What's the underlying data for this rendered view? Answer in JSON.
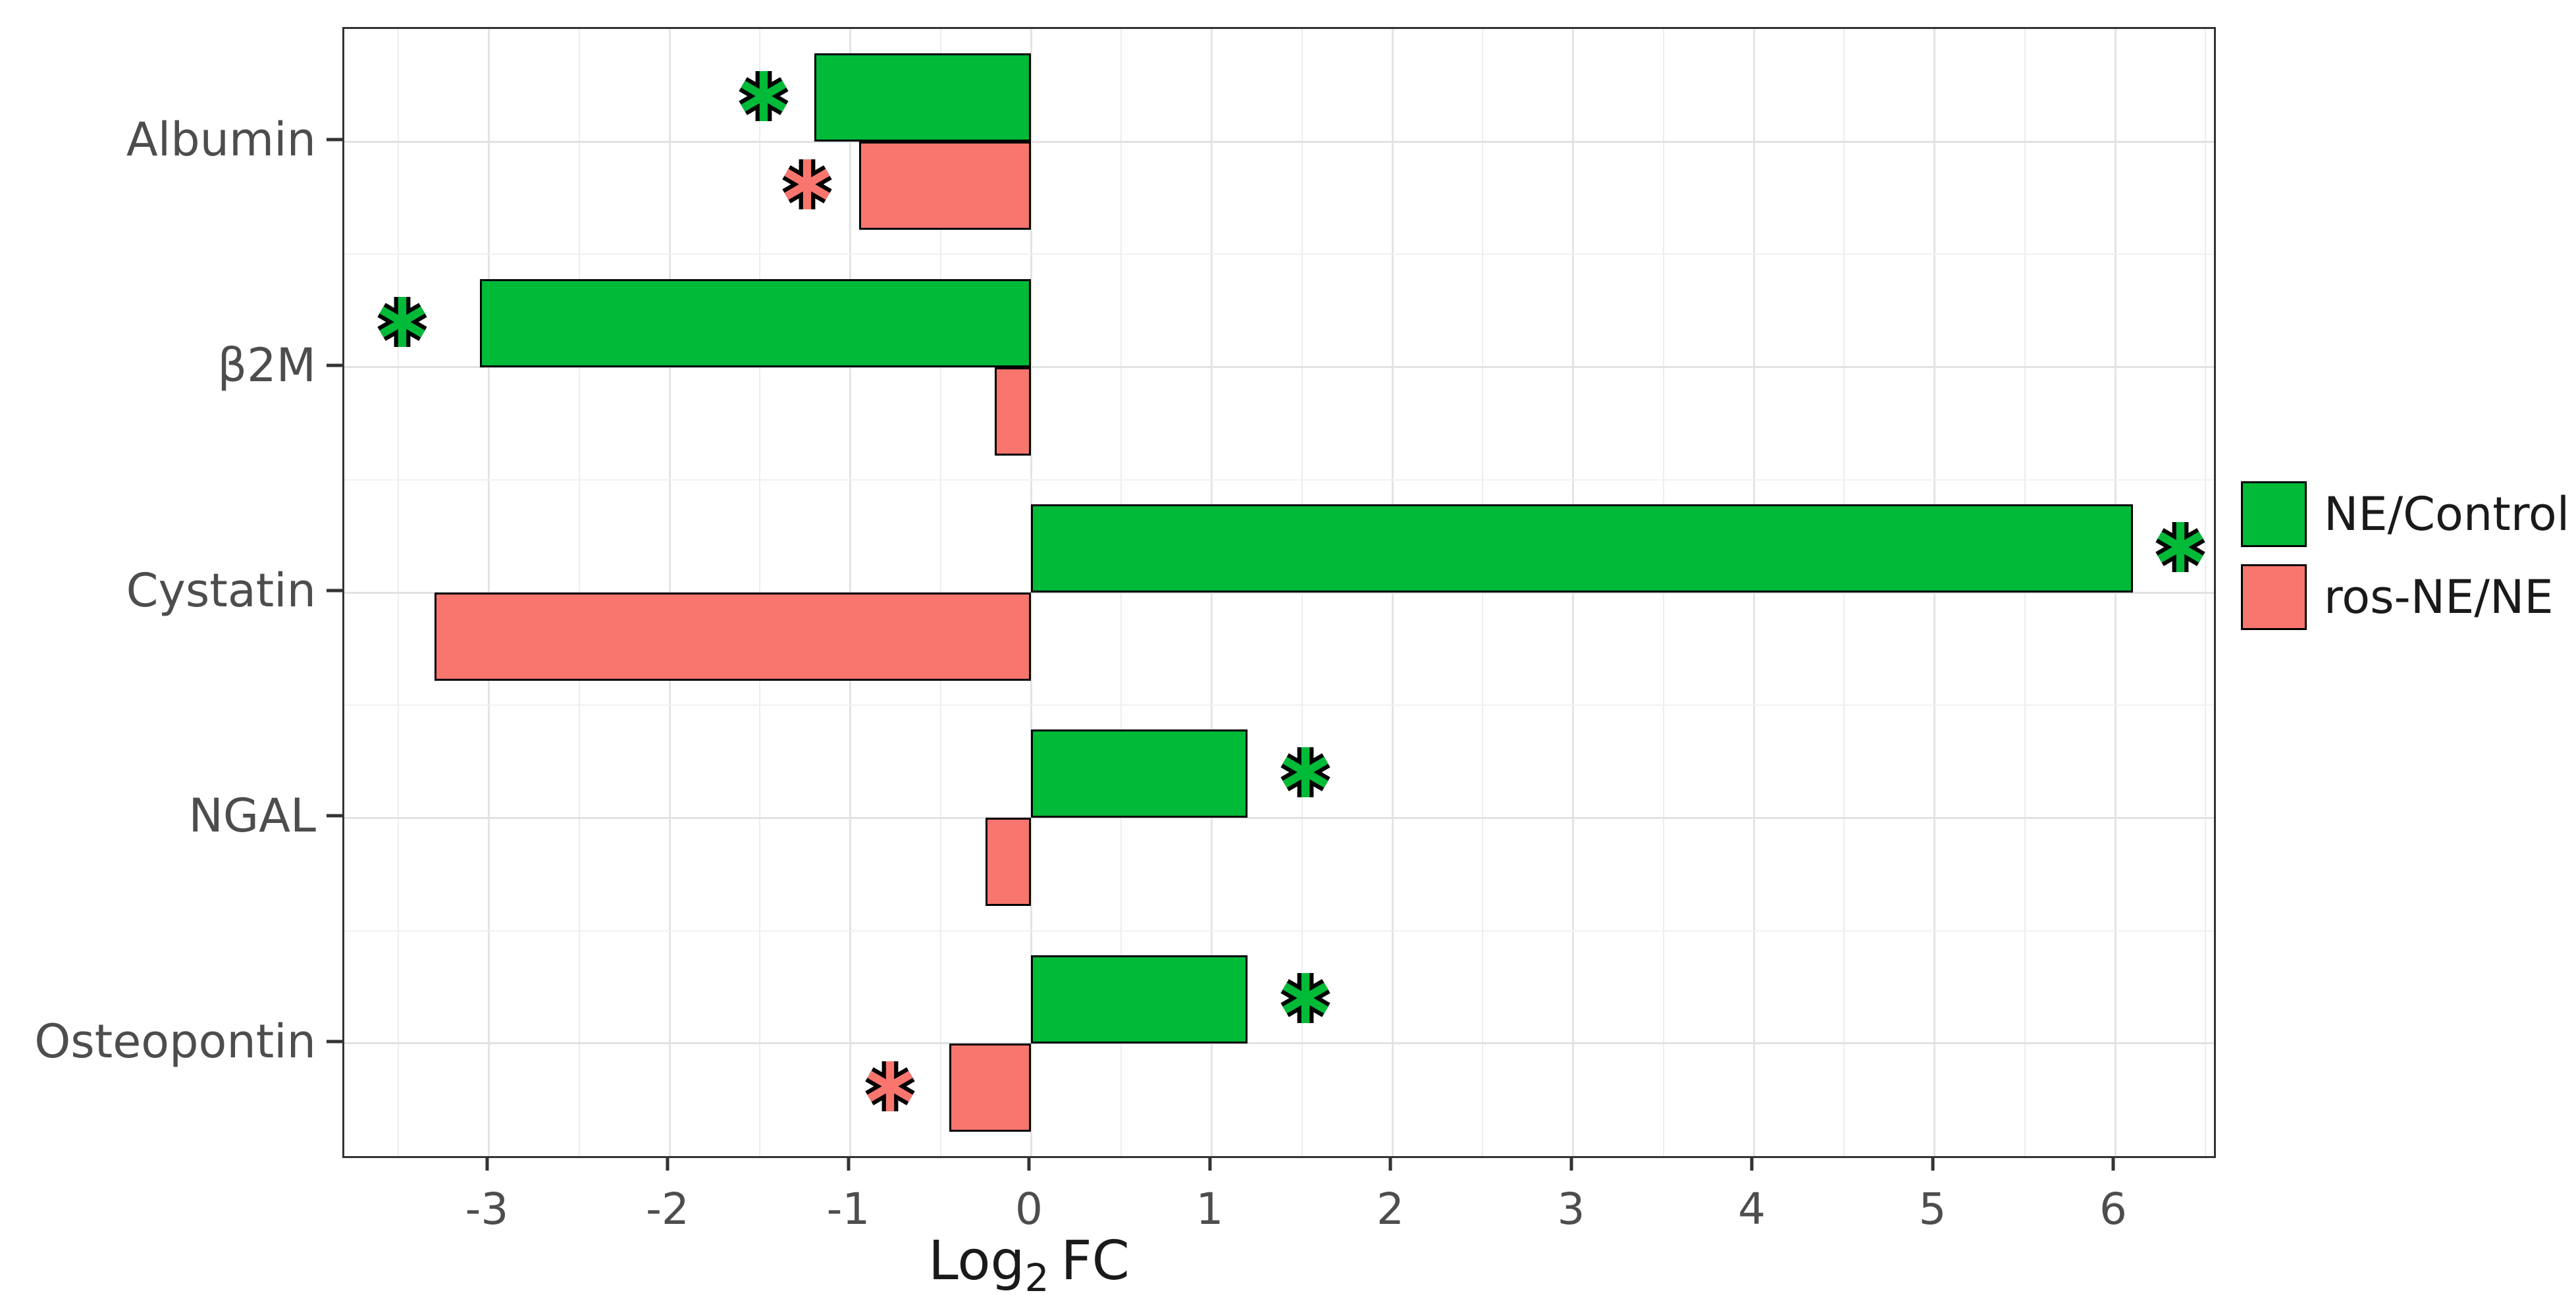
{
  "figure": {
    "description": "Horizontal grouped bar chart of urinary biomarkers, Log2 fold change",
    "background_color": "#FFFFFF",
    "panel_border_color": "#333333",
    "gridline_color": "#E4E4E4",
    "axis_text_color": "#4D4D4D"
  },
  "chart_data": {
    "type": "bar",
    "orientation": "horizontal",
    "title": "",
    "xlabel": "Log2 FC",
    "xlabel_parts": {
      "main": "Log",
      "sub": "2",
      "rest": "FC"
    },
    "ylabel": "",
    "categories": [
      "Albumin",
      "β2M",
      "Cystatin",
      "NGAL",
      "Osteopontin"
    ],
    "series": [
      {
        "name": "NE/Control",
        "color": "#00BA38",
        "values": [
          -1.2,
          -3.05,
          6.1,
          1.2,
          1.2
        ]
      },
      {
        "name": "ros-NE/NE",
        "color": "#F8766D",
        "values": [
          -0.95,
          -0.2,
          -3.3,
          -0.25,
          -0.45
        ]
      }
    ],
    "x_ticks": [
      "-3",
      "-2",
      "-1",
      "0",
      "1",
      "2",
      "3",
      "4",
      "5",
      "6"
    ],
    "x_tick_values": [
      -3,
      -2,
      -1,
      0,
      1,
      2,
      3,
      4,
      5,
      6
    ],
    "xlim": [
      -3.8,
      6.55
    ],
    "grid": "vertical major every 1 and minor every 0.5, horizontal at category centers",
    "legend_position": "right of panel, middle",
    "significance_marker": "*",
    "significance": [
      {
        "category": "Albumin",
        "series": "NE/Control",
        "x": -1.48
      },
      {
        "category": "Albumin",
        "series": "ros-NE/NE",
        "x": -1.24
      },
      {
        "category": "β2M",
        "series": "NE/Control",
        "x": -3.48
      },
      {
        "category": "Cystatin",
        "series": "NE/Control",
        "x": 6.36
      },
      {
        "category": "NGAL",
        "series": "NE/Control",
        "x": 1.52
      },
      {
        "category": "Osteopontin",
        "series": "NE/Control",
        "x": 1.52
      },
      {
        "category": "Osteopontin",
        "series": "ros-NE/NE",
        "x": -0.78
      }
    ]
  }
}
